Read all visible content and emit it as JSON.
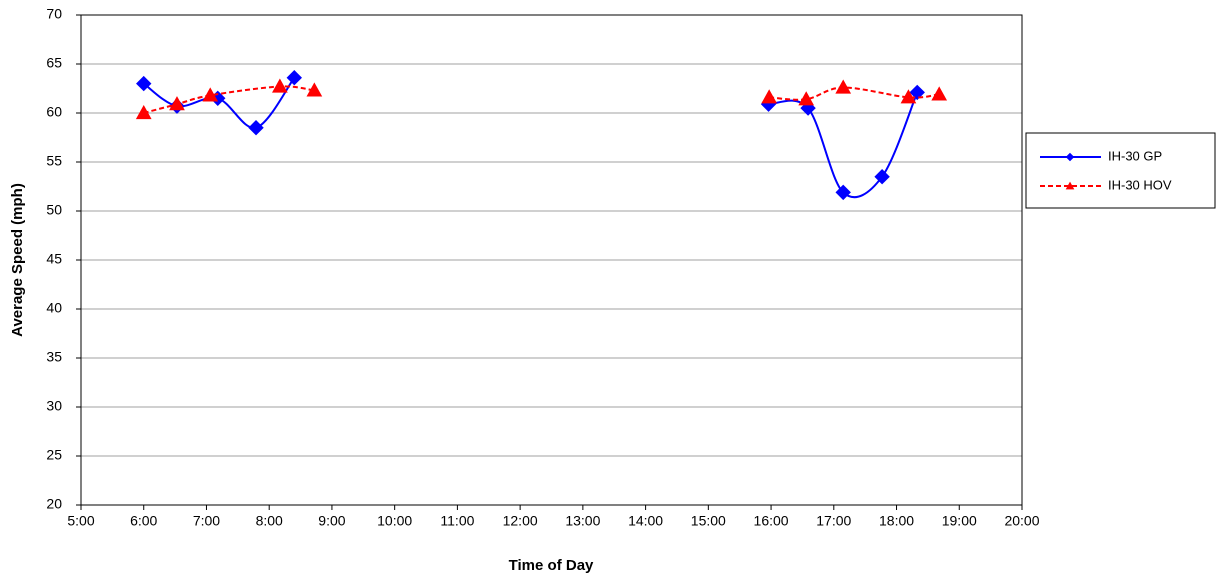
{
  "chart_data": {
    "type": "line",
    "x_label": "Time of Day",
    "y_label": "Average Speed (mph)",
    "xlim": [
      5,
      20
    ],
    "xticks": [
      {
        "value": 5,
        "label": "5:00"
      },
      {
        "value": 6,
        "label": "6:00"
      },
      {
        "value": 7,
        "label": "7:00"
      },
      {
        "value": 8,
        "label": "8:00"
      },
      {
        "value": 9,
        "label": "9:00"
      },
      {
        "value": 10,
        "label": "10:00"
      },
      {
        "value": 11,
        "label": "11:00"
      },
      {
        "value": 12,
        "label": "12:00"
      },
      {
        "value": 13,
        "label": "13:00"
      },
      {
        "value": 14,
        "label": "14:00"
      },
      {
        "value": 15,
        "label": "15:00"
      },
      {
        "value": 16,
        "label": "16:00"
      },
      {
        "value": 17,
        "label": "17:00"
      },
      {
        "value": 18,
        "label": "18:00"
      },
      {
        "value": 19,
        "label": "19:00"
      },
      {
        "value": 20,
        "label": "20:00"
      }
    ],
    "ylim": [
      20,
      70
    ],
    "yticks": [
      20,
      25,
      30,
      35,
      40,
      45,
      50,
      55,
      60,
      65,
      70
    ],
    "grid": true,
    "legend": "right",
    "smooth": true,
    "series": [
      {
        "name": "IH-30 GP",
        "color": "#0000ff",
        "marker": "diamond",
        "linestyle": "solid",
        "x": [
          6.0,
          6.53,
          7.18,
          7.79,
          8.4,
          null,
          15.96,
          16.59,
          17.15,
          17.77,
          18.33
        ],
        "values": [
          63.0,
          60.7,
          61.5,
          58.5,
          63.6,
          null,
          60.9,
          60.5,
          51.9,
          53.5,
          62.1
        ]
      },
      {
        "name": "IH-30 HOV",
        "color": "#ff0000",
        "marker": "triangle",
        "linestyle": "dashed",
        "x": [
          6.0,
          6.53,
          7.06,
          8.17,
          8.72,
          null,
          15.97,
          16.56,
          17.15,
          18.19,
          18.68
        ],
        "values": [
          60.0,
          60.9,
          61.8,
          62.7,
          62.3,
          null,
          61.6,
          61.4,
          62.6,
          61.6,
          61.9
        ]
      }
    ]
  }
}
